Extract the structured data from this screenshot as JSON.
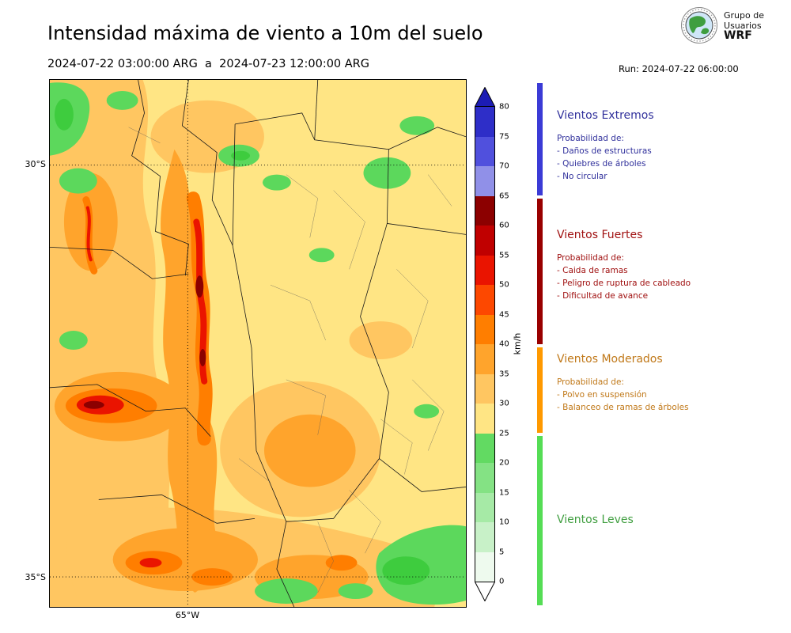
{
  "header": {
    "title": "Intensidad máxima de viento a 10m del suelo",
    "period": "2024-07-22 03:00:00 ARG  a  2024-07-23 12:00:00 ARG",
    "run": "Run: 2024-07-22 06:00:00",
    "logo": {
      "line1": "Grupo de",
      "line2": "Usuarios",
      "line3": "WRF"
    }
  },
  "map": {
    "lat_ticks": [
      "30°S",
      "35°S"
    ],
    "lon_ticks": [
      "65°W"
    ]
  },
  "colorbar": {
    "unit": "km/h",
    "ticks": [
      "80",
      "75",
      "70",
      "65",
      "60",
      "55",
      "50",
      "45",
      "40",
      "35",
      "30",
      "25",
      "20",
      "15",
      "10",
      "5",
      "0"
    ],
    "segment_colors_top_to_bottom": [
      "#2e2ec8",
      "#5050dd",
      "#9090e8",
      "#8c0000",
      "#c00000",
      "#ea1400",
      "#fd4800",
      "#ff7e00",
      "#ffa42c",
      "#ffc661",
      "#ffe584",
      "#62da62",
      "#84e284",
      "#a6eaa6",
      "#c8f1c8",
      "#eefaee"
    ],
    "over_color": "#1c1cb4",
    "under_color": "#ffffff"
  },
  "legend": {
    "sections": [
      {
        "title": "Vientos Extremos",
        "text_color": "#31319c",
        "strip_color": "#3b3bd6",
        "lines": [
          "Probabilidad de:",
          "- Daños de estructuras",
          "- Quiebres de árboles",
          "- No circular"
        ]
      },
      {
        "title": "Vientos Fuertes",
        "text_color": "#a01010",
        "strip_color": "#990000",
        "lines": [
          "Probabilidad de:",
          "- Caida de ramas",
          "- Peligro de ruptura de cableado",
          "- Dificultad de avance"
        ]
      },
      {
        "title": "Vientos Moderados",
        "text_color": "#c07818",
        "strip_color": "#ff9900",
        "lines": [
          "Probabilidad de:",
          "- Polvo en suspensión",
          "- Balanceo de ramas de árboles"
        ]
      },
      {
        "title": "Vientos Leves",
        "text_color": "#3f9e3f",
        "strip_color": "#55dd55",
        "lines": []
      }
    ]
  }
}
